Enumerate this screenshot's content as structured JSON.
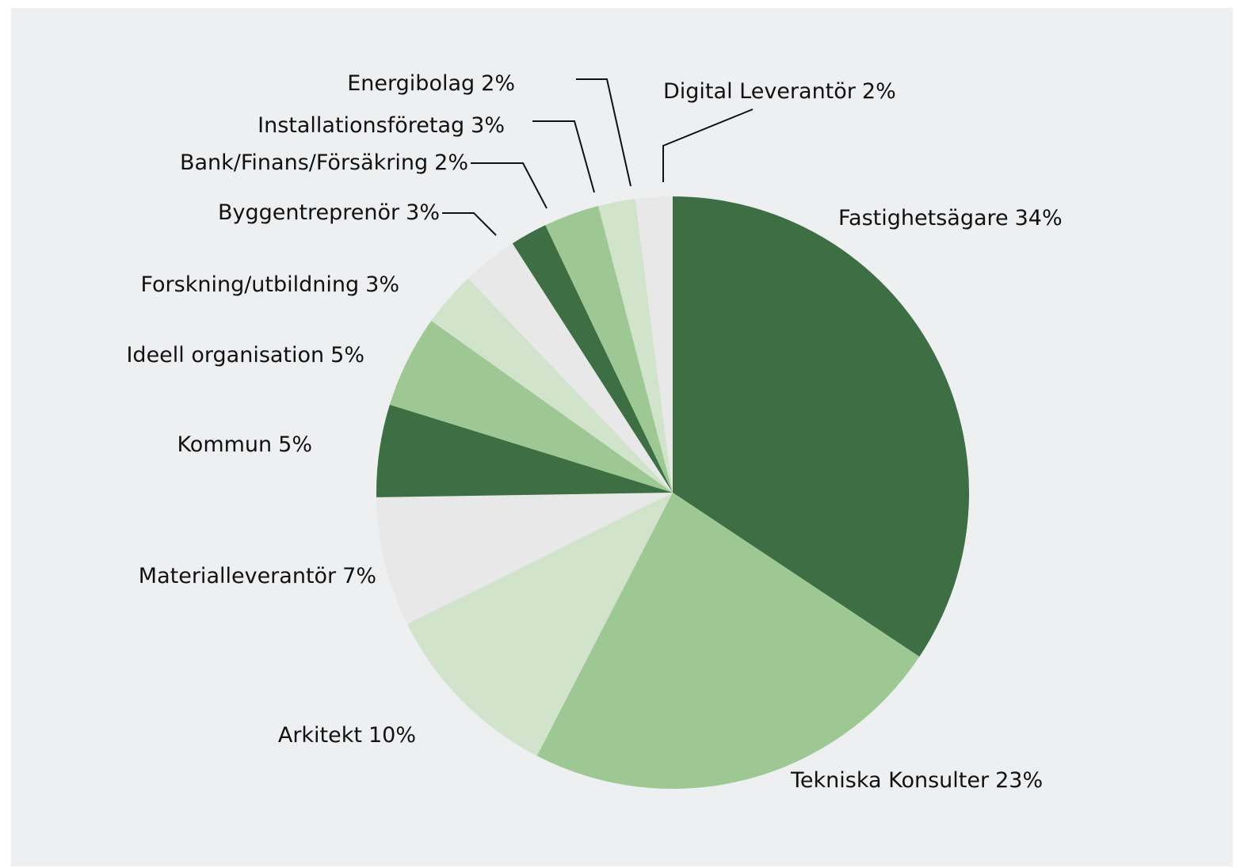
{
  "chart_data": {
    "type": "pie",
    "categories": [
      "Fastighetsägare",
      "Tekniska Konsulter",
      "Arkitekt",
      "Materialleverantör",
      "Kommun",
      "Ideell organisation",
      "Forskning/utbildning",
      "Byggentreprenör",
      "Bank/Finans/Försäkring",
      "Installationsföretag",
      "Energibolag",
      "Digital Leverantör"
    ],
    "values": [
      34,
      23,
      10,
      7,
      5,
      5,
      3,
      3,
      2,
      3,
      2,
      2
    ],
    "value_labels": [
      "34%",
      "23%",
      "10%",
      "7%",
      "5%",
      "5%",
      "3%",
      "3%",
      "2%",
      "3%",
      "2%",
      "2%"
    ],
    "colors": [
      "#3e6e43",
      "#9dc893",
      "#d1e4cb",
      "#e8e8e8",
      "#3e6e43",
      "#9dc893",
      "#d1e4cb",
      "#e8e8e8",
      "#3e6e43",
      "#9dc893",
      "#d1e4cb",
      "#e8e8e8"
    ]
  }
}
